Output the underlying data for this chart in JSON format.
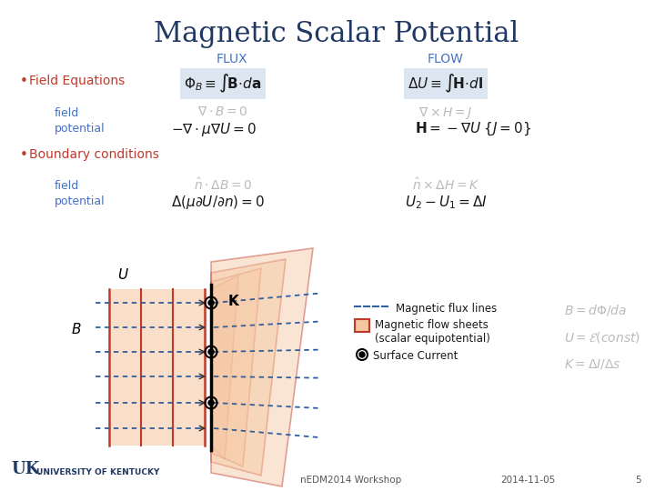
{
  "title": "Magnetic Scalar Potential",
  "title_color": "#1f3864",
  "title_fontsize": 22,
  "flux_label": "FLUX",
  "flow_label": "FLOW",
  "header_color": "#4472c4",
  "header_fontsize": 10,
  "bullet_color": "#c0392b",
  "label_color": "#4472c4",
  "label_fontsize": 9,
  "eq_color_dark": "#1a1a1a",
  "eq_color_light": "#bbbbbb",
  "eq_color_highlight_bg": "#dce6f1",
  "legend_flux_lines": "Magnetic flux lines",
  "legend_flow_sheets": "Magnetic flow sheets\n(scalar equipotential)",
  "legend_surface": "Surface Current",
  "legend_color": "#1a1a1a",
  "right_eq_color": "#bbbbbb",
  "footer_center": "nEDM2014 Workshop",
  "footer_date": "2014-11-05",
  "footer_page": "5",
  "footer_color": "#555555",
  "bg_color": "#ffffff",
  "red_color": "#c0392b",
  "blue_color": "#1f3864",
  "dashed_line_color": "#2e5fa3"
}
